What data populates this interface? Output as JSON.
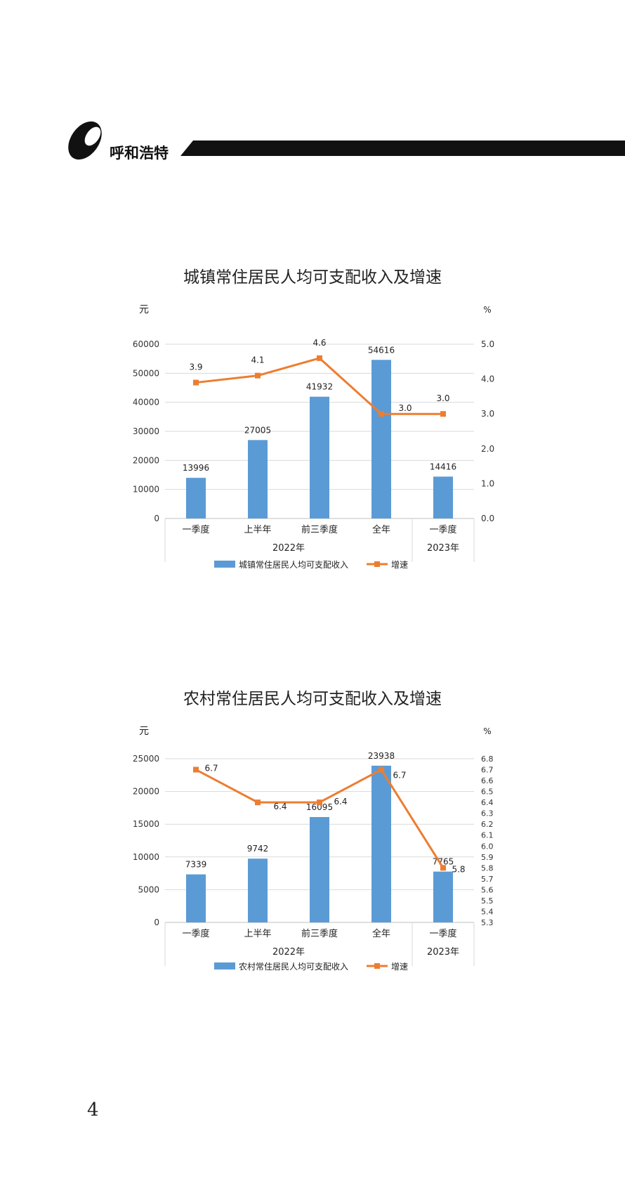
{
  "header": {
    "brand": "呼和浩特"
  },
  "page": {
    "number": "4"
  },
  "chart_data": [
    {
      "type": "bar+line",
      "title": "城镇常住居民人均可支配收入及增速",
      "y_unit_left": "元",
      "y_unit_right": "%",
      "ylim": [
        0,
        60000
      ],
      "y_ticks": [
        0,
        10000,
        20000,
        30000,
        40000,
        50000,
        60000
      ],
      "y2lim": [
        0,
        5
      ],
      "y2_ticks": [
        "0.0",
        "1.0",
        "2.0",
        "3.0",
        "4.0",
        "5.0"
      ],
      "categories": [
        "一季度",
        "上半年",
        "前三季度",
        "全年",
        "一季度"
      ],
      "groups": [
        {
          "label": "2022年",
          "span": 4
        },
        {
          "label": "2023年",
          "span": 1
        }
      ],
      "series": [
        {
          "name": "城镇常住居民人均可支配收入",
          "kind": "bar",
          "color": "#5b9bd5",
          "values": [
            13996,
            27005,
            41932,
            54616,
            14416
          ]
        },
        {
          "name": "增速",
          "kind": "line",
          "color": "#ed7d31",
          "values": [
            "3.9",
            "4.1",
            "4.6",
            "3.0",
            "3.0"
          ]
        }
      ],
      "legend": "bottom",
      "grid": true
    },
    {
      "type": "bar+line",
      "title": "农村常住居民人均可支配收入及增速",
      "y_unit_left": "元",
      "y_unit_right": "%",
      "ylim": [
        0,
        25000
      ],
      "y_ticks": [
        0,
        5000,
        10000,
        15000,
        20000,
        25000
      ],
      "y2lim": [
        5.3,
        6.8
      ],
      "y2_ticks": [
        "5.3",
        "5.4",
        "5.5",
        "5.6",
        "5.7",
        "5.8",
        "5.9",
        "6.0",
        "6.1",
        "6.2",
        "6.3",
        "6.4",
        "6.5",
        "6.6",
        "6.7",
        "6.8"
      ],
      "categories": [
        "一季度",
        "上半年",
        "前三季度",
        "全年",
        "一季度"
      ],
      "groups": [
        {
          "label": "2022年",
          "span": 4
        },
        {
          "label": "2023年",
          "span": 1
        }
      ],
      "series": [
        {
          "name": "农村常住居民人均可支配收入",
          "kind": "bar",
          "color": "#5b9bd5",
          "values": [
            7339,
            9742,
            16095,
            23938,
            7765
          ]
        },
        {
          "name": "增速",
          "kind": "line",
          "color": "#ed7d31",
          "values": [
            "6.7",
            "6.4",
            "6.4",
            "6.7",
            "5.8"
          ]
        }
      ],
      "legend": "bottom",
      "grid": true
    }
  ]
}
